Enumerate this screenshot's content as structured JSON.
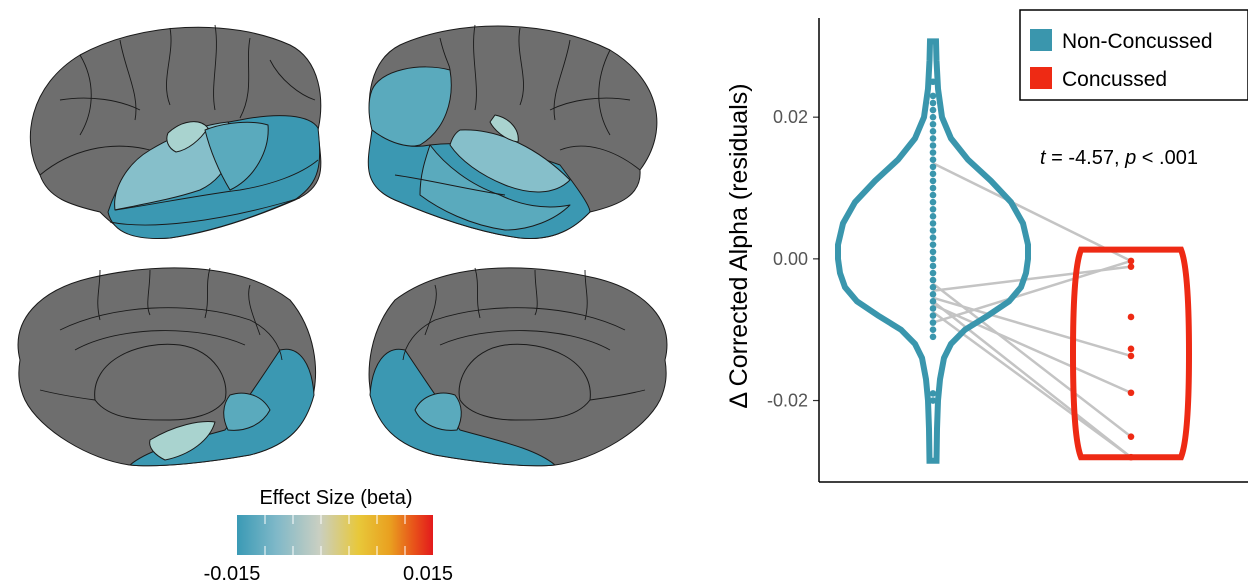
{
  "colorbar": {
    "title": "Effect Size (beta)",
    "min_label": "-0.015",
    "max_label": "0.015",
    "colors": [
      "#3a9ab5",
      "#7fb8c8",
      "#c9cfc2",
      "#e8c83a",
      "#e9a020",
      "#e8541a",
      "#e31a1c"
    ]
  },
  "brain_colors": {
    "gray": "#6e6e6e",
    "dark_teal": "#3b98b2",
    "mid_teal": "#5aaabd",
    "light_teal": "#86bfca",
    "pale_teal": "#a9d3cf"
  },
  "chart_data": {
    "type": "violin",
    "ylabel": "Δ Corrected Alpha (residuals)",
    "ylim": [
      -0.0315,
      0.034
    ],
    "yticks": [
      0.02,
      0.0,
      -0.02
    ],
    "ytick_labels": [
      "0.02",
      "0.00",
      "-0.02"
    ],
    "annotation": {
      "t_label": "t",
      "t_text": " = -4.57, ",
      "p_label": "p",
      "p_text": " < .001"
    },
    "legend_position": "top-right",
    "series": [
      {
        "name": "Non-Concussed",
        "color": "#3a96ad",
        "range": [
          -0.0285,
          0.0307
        ],
        "points": [
          0.025,
          0.023,
          0.022,
          0.021,
          0.02,
          0.019,
          0.018,
          0.017,
          0.016,
          0.015,
          0.014,
          0.013,
          0.012,
          0.011,
          0.01,
          0.009,
          0.008,
          0.007,
          0.006,
          0.005,
          0.004,
          0.003,
          0.002,
          0.001,
          0.0,
          -0.001,
          -0.002,
          -0.003,
          -0.004,
          -0.005,
          -0.006,
          -0.007,
          -0.008,
          -0.009,
          -0.01,
          -0.011,
          -0.019,
          -0.02
        ]
      },
      {
        "name": "Concussed",
        "color": "#ee2a14",
        "range": [
          -0.028,
          0.0013
        ],
        "points": [
          -0.0003,
          -0.0011,
          -0.0082,
          -0.0127,
          -0.0137,
          -0.0189,
          -0.0251,
          -0.028
        ]
      }
    ],
    "pairs": [
      {
        "from": 0.0135,
        "to": -0.0003
      },
      {
        "from": -0.0045,
        "to": -0.0011
      },
      {
        "from": -0.0055,
        "to": -0.0137
      },
      {
        "from": -0.009,
        "to": -0.0003
      },
      {
        "from": -0.0035,
        "to": -0.0251
      },
      {
        "from": -0.006,
        "to": -0.028
      },
      {
        "from": -0.0075,
        "to": -0.028
      },
      {
        "from": -0.0065,
        "to": -0.0189
      }
    ]
  }
}
